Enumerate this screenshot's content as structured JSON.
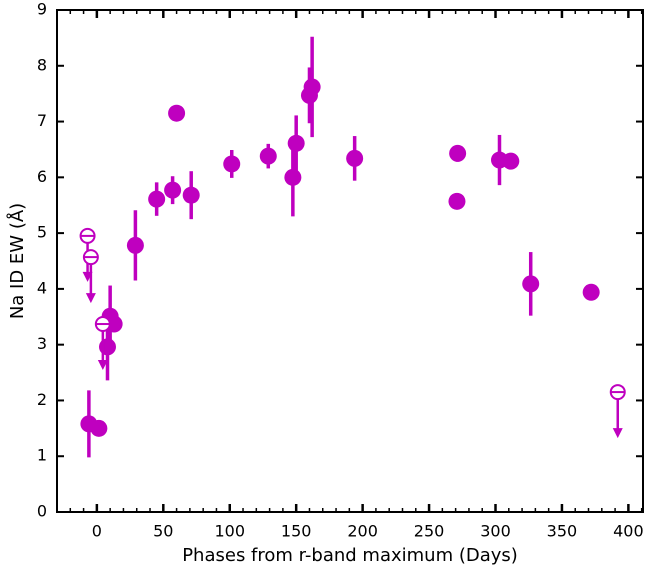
{
  "chart_data": {
    "type": "scatter",
    "xlabel": "Phases from r-band maximum (Days)",
    "ylabel": "Na ID EW (Å)",
    "xlim": [
      -30,
      411
    ],
    "ylim": [
      0,
      9
    ],
    "xticks": [
      0,
      50,
      100,
      150,
      200,
      250,
      300,
      350,
      400
    ],
    "yticks": [
      0,
      1,
      2,
      3,
      4,
      5,
      6,
      7,
      8,
      9
    ],
    "series": [
      {
        "color": "#bf00bf",
        "x": [
          -6,
          1.5,
          8,
          10,
          13,
          29,
          45,
          57,
          60,
          71,
          101.5,
          129,
          147.5,
          150,
          160,
          162,
          194,
          271.5,
          271,
          303,
          311.5,
          326.5,
          372
        ],
        "values": [
          1.58,
          1.5,
          2.96,
          3.51,
          3.37,
          4.78,
          5.61,
          5.77,
          7.15,
          5.68,
          6.24,
          6.38,
          6.0,
          6.61,
          7.47,
          7.62,
          6.34,
          6.43,
          5.57,
          6.31,
          6.29,
          4.09,
          3.94
        ],
        "errors": [
          0.6,
          null,
          0.6,
          0.55,
          null,
          0.63,
          0.3,
          0.25,
          null,
          0.43,
          0.25,
          0.22,
          0.7,
          0.5,
          0.5,
          0.9,
          0.4,
          0.15,
          null,
          0.45,
          null,
          0.57,
          null
        ]
      },
      {
        "color": "#bf00bf",
        "upper_limit": true,
        "x": [
          -7,
          -4.5,
          4.5,
          392
        ],
        "values": [
          4.95,
          4.57,
          3.37,
          2.15
        ]
      }
    ]
  }
}
